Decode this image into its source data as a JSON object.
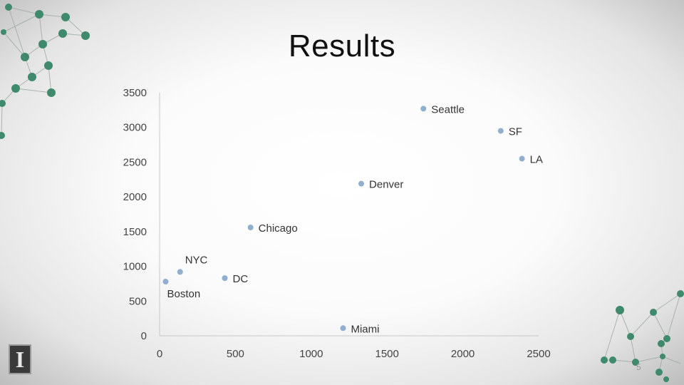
{
  "slide": {
    "title": "Results",
    "slide_number": "5",
    "logo_letter": "I"
  },
  "colors": {
    "marker": "#8faed0",
    "axis": "#c8c8c8",
    "network": "#3f8a6c"
  },
  "chart_data": {
    "type": "scatter",
    "title": "",
    "xlabel": "",
    "ylabel": "",
    "xlim": [
      0,
      2500
    ],
    "ylim": [
      0,
      3500
    ],
    "x_ticks": [
      0,
      500,
      1000,
      1500,
      2000,
      2500
    ],
    "y_ticks": [
      0,
      500,
      1000,
      1500,
      2000,
      2500,
      3000,
      3500
    ],
    "grid": false,
    "legend": false,
    "points": [
      {
        "label": "Boston",
        "x": 40,
        "y": 780,
        "label_pos": "below"
      },
      {
        "label": "NYC",
        "x": 135,
        "y": 920,
        "label_pos": "above"
      },
      {
        "label": "DC",
        "x": 430,
        "y": 830,
        "label_pos": "right"
      },
      {
        "label": "Chicago",
        "x": 600,
        "y": 1560,
        "label_pos": "right"
      },
      {
        "label": "Miami",
        "x": 1210,
        "y": 110,
        "label_pos": "right"
      },
      {
        "label": "Denver",
        "x": 1330,
        "y": 2190,
        "label_pos": "right"
      },
      {
        "label": "Seattle",
        "x": 1740,
        "y": 3270,
        "label_pos": "right"
      },
      {
        "label": "SF",
        "x": 2250,
        "y": 2950,
        "label_pos": "right"
      },
      {
        "label": "LA",
        "x": 2390,
        "y": 2550,
        "label_pos": "right"
      }
    ]
  }
}
